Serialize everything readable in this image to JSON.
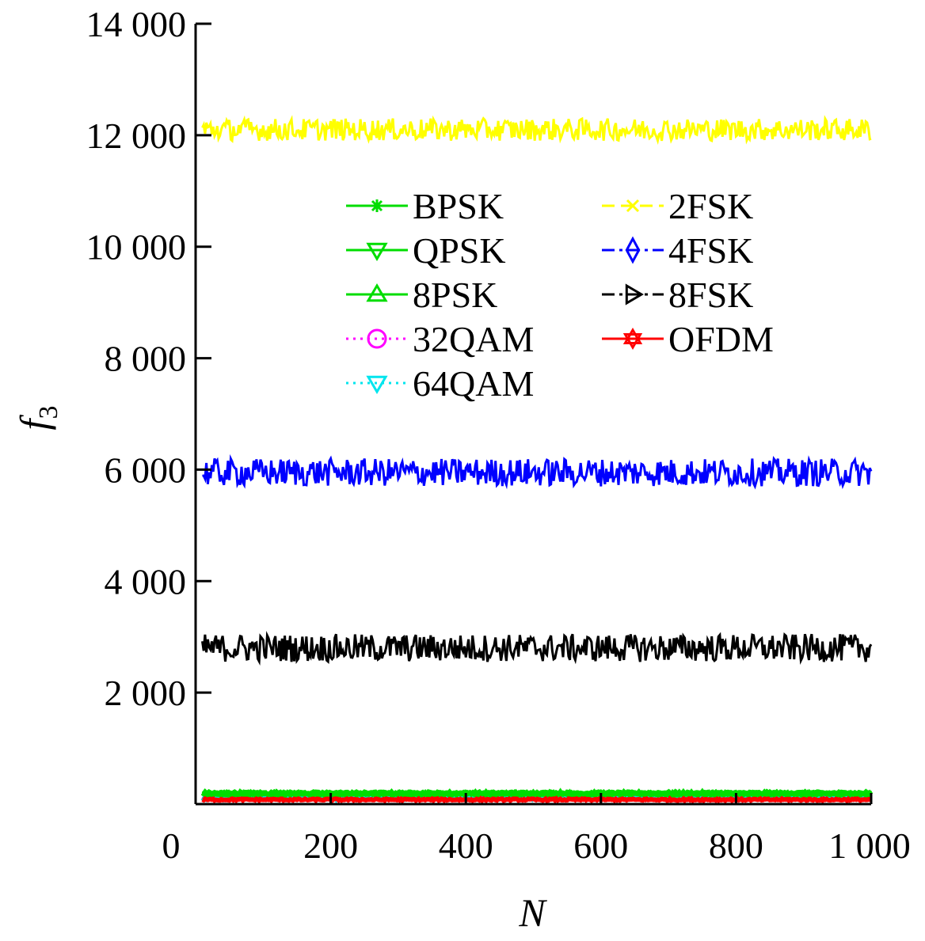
{
  "chart_data": {
    "type": "line",
    "xlabel": "N",
    "ylabel": "f",
    "ylabel_subscript": "3",
    "xlim": [
      0,
      1000
    ],
    "ylim": [
      0,
      14000
    ],
    "x_ticks": [
      0,
      200,
      400,
      600,
      800,
      1000
    ],
    "x_tick_labels": [
      "0",
      "200",
      "400",
      "600",
      "800",
      "1 000"
    ],
    "y_ticks": [
      2000,
      4000,
      6000,
      8000,
      10000,
      12000,
      14000
    ],
    "y_tick_labels": [
      "2 000",
      "4 000",
      "6 000",
      "8 000",
      "10 000",
      "12 000",
      "14 000"
    ],
    "grid": false,
    "legend_position": "upper-center",
    "series": [
      {
        "name": "BPSK",
        "color": "#00dd00",
        "line": "solid",
        "marker": "asterisk",
        "level": 200,
        "amplitude": 20
      },
      {
        "name": "QPSK",
        "color": "#00dd00",
        "line": "solid",
        "marker": "triangle-down",
        "level": 190,
        "amplitude": 20
      },
      {
        "name": "8PSK",
        "color": "#00dd00",
        "line": "solid",
        "marker": "triangle-up",
        "level": 180,
        "amplitude": 20
      },
      {
        "name": "32QAM",
        "color": "#ff00ff",
        "line": "dotted",
        "marker": "circle",
        "level": 120,
        "amplitude": 20
      },
      {
        "name": "64QAM",
        "color": "#00e5ee",
        "line": "dotted",
        "marker": "triangle-down",
        "level": 110,
        "amplitude": 20
      },
      {
        "name": "2FSK",
        "color": "#ffff00",
        "line": "dashed",
        "marker": "x",
        "level": 12100,
        "amplitude": 200
      },
      {
        "name": "4FSK",
        "color": "#0000ff",
        "line": "dashdot",
        "marker": "diamond",
        "level": 5950,
        "amplitude": 250
      },
      {
        "name": "8FSK",
        "color": "#000000",
        "line": "dashdot",
        "marker": "triangle-right",
        "level": 2800,
        "amplitude": 250
      },
      {
        "name": "OFDM",
        "color": "#ff0000",
        "line": "solid",
        "marker": "hexagram",
        "level": 80,
        "amplitude": 15
      }
    ]
  }
}
